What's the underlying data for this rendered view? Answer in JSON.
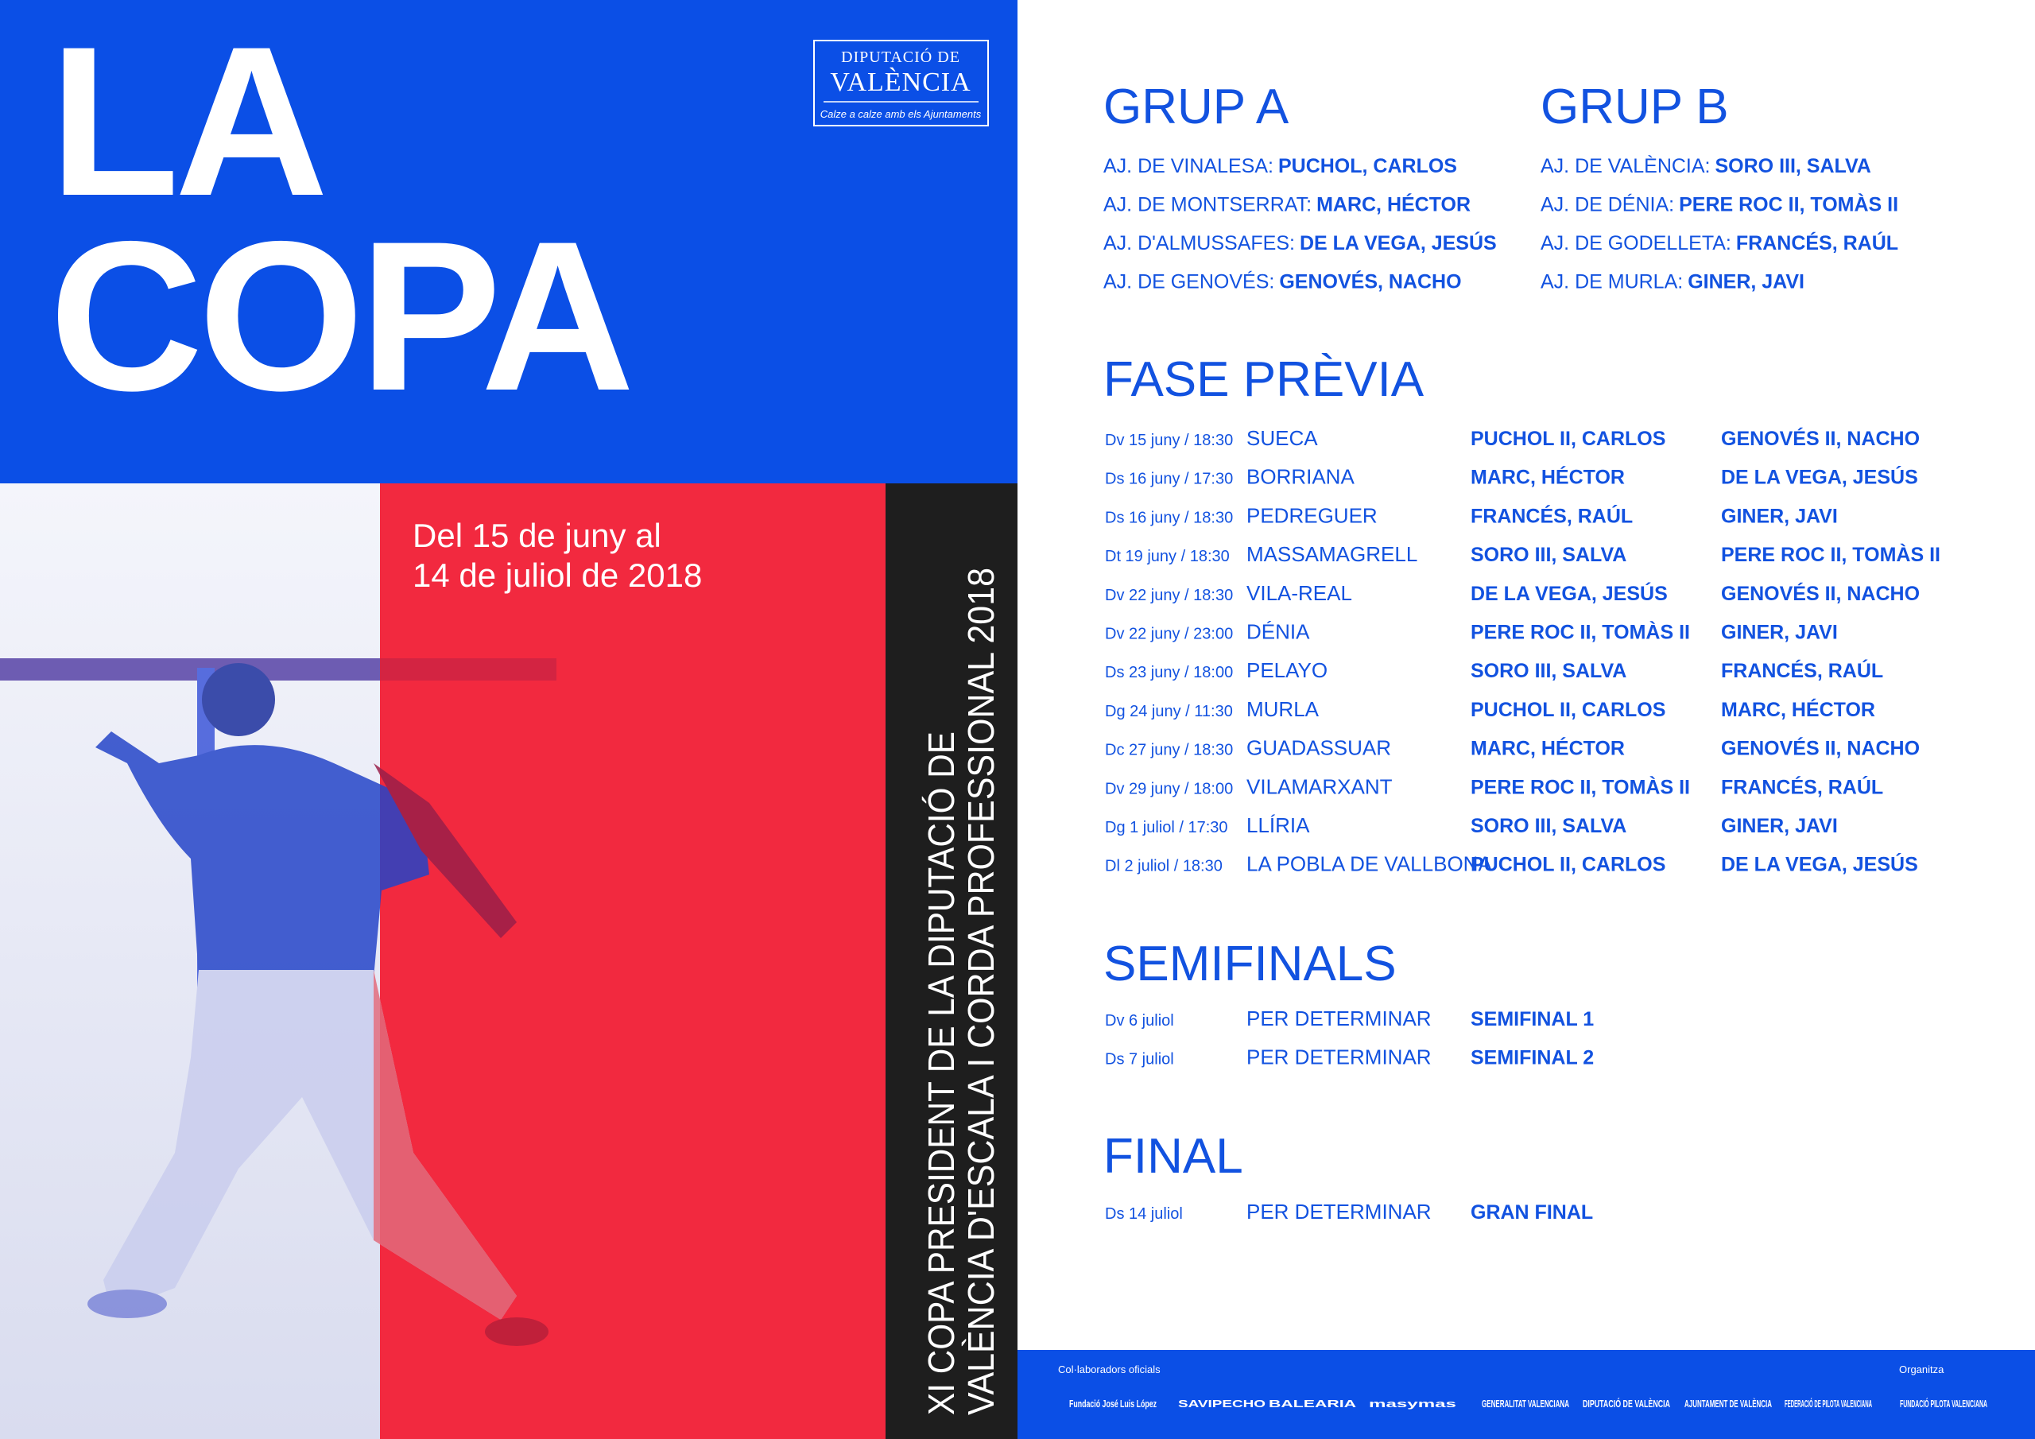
{
  "title": [
    "LA",
    "COPA"
  ],
  "logo": {
    "line1": "DIPUTACIÓ DE",
    "line2": "VALÈNCIA",
    "tagline": "Calze a calze amb els Ajuntaments"
  },
  "dates": [
    "Del 15 de juny al",
    "14 de juliol de 2018"
  ],
  "subtitle": [
    "XI COPA PRESIDENT DE LA DIPUTACIÓ DE",
    "VALÈNCIA D'ESCALA I CORDA PROFESSIONAL 2018"
  ],
  "groups": [
    {
      "name": "GRUP A",
      "teams": [
        {
          "town": "AJ. DE VINALESA:",
          "players": "PUCHOL, CARLOS"
        },
        {
          "town": "AJ. DE MONTSERRAT:",
          "players": "MARC, HÉCTOR"
        },
        {
          "town": "AJ. D'ALMUSSAFES:",
          "players": "DE LA VEGA, JESÚS"
        },
        {
          "town": "AJ. DE GENOVÉS:",
          "players": "GENOVÉS, NACHO"
        }
      ]
    },
    {
      "name": "GRUP B",
      "teams": [
        {
          "town": "AJ. DE VALÈNCIA:",
          "players": "SORO III, SALVA"
        },
        {
          "town": "AJ. DE DÉNIA:",
          "players": "PERE ROC II, TOMÀS II"
        },
        {
          "town": "AJ. DE GODELLETA:",
          "players": "FRANCÉS, RAÚL"
        },
        {
          "town": "AJ. DE MURLA:",
          "players": "GINER, JAVI"
        }
      ]
    }
  ],
  "sections": [
    {
      "heading": "FASE PRÈVIA",
      "matches": [
        {
          "date": "Dv 15 juny / 18:30",
          "venue": "SUECA",
          "team1": "PUCHOL II, CARLOS",
          "team2": "GENOVÉS II, NACHO"
        },
        {
          "date": "Ds 16 juny / 17:30",
          "venue": "BORRIANA",
          "team1": "MARC, HÉCTOR",
          "team2": "DE LA VEGA, JESÚS"
        },
        {
          "date": "Ds 16 juny / 18:30",
          "venue": "PEDREGUER",
          "team1": "FRANCÉS, RAÚL",
          "team2": "GINER, JAVI"
        },
        {
          "date": "Dt 19 juny / 18:30",
          "venue": "MASSAMAGRELL",
          "team1": "SORO III, SALVA",
          "team2": "PERE ROC II, TOMÀS II"
        },
        {
          "date": "Dv 22 juny / 18:30",
          "venue": "VILA-REAL",
          "team1": "DE LA VEGA, JESÚS",
          "team2": "GENOVÉS II, NACHO"
        },
        {
          "date": "Dv 22 juny / 23:00",
          "venue": "DÉNIA",
          "team1": "PERE ROC II, TOMÀS II",
          "team2": "GINER, JAVI"
        },
        {
          "date": "Ds 23 juny / 18:00",
          "venue": "PELAYO",
          "team1": "SORO III, SALVA",
          "team2": "FRANCÉS, RAÚL"
        },
        {
          "date": "Dg 24 juny / 11:30",
          "venue": "MURLA",
          "team1": "PUCHOL II, CARLOS",
          "team2": "MARC, HÉCTOR"
        },
        {
          "date": "Dc 27 juny / 18:30",
          "venue": "GUADASSUAR",
          "team1": "MARC, HÉCTOR",
          "team2": "GENOVÉS II, NACHO"
        },
        {
          "date": "Dv 29 juny / 18:00",
          "venue": "VILAMARXANT",
          "team1": "PERE ROC II, TOMÀS II",
          "team2": "FRANCÉS, RAÚL"
        },
        {
          "date": "Dg 1 juliol / 17:30",
          "venue": "LLÍRIA",
          "team1": "SORO III, SALVA",
          "team2": "GINER, JAVI"
        },
        {
          "date": "Dl 2 juliol / 18:30",
          "venue": "LA POBLA DE VALLBONA",
          "team1": "PUCHOL II, CARLOS",
          "team2": "DE LA VEGA, JESÚS"
        }
      ]
    },
    {
      "heading": "SEMIFINALS",
      "matches": [
        {
          "date": "Dv 6 juliol",
          "venue": "PER DETERMINAR",
          "team1": "SEMIFINAL 1"
        },
        {
          "date": "Ds 7 juliol",
          "venue": "PER DETERMINAR",
          "team1": "SEMIFINAL 2"
        }
      ]
    },
    {
      "heading": "FINAL",
      "matches": [
        {
          "date": "Ds 14 juliol",
          "venue": "PER DETERMINAR",
          "team1": "GRAN FINAL"
        }
      ]
    }
  ],
  "footer": {
    "collaborators_label": "Col·laboradors oficials",
    "collaborators": [
      "Fundació José Luis López",
      "SAVIPECHO",
      "BALEARIA",
      "masymas",
      "GENERALITAT VALENCIANA",
      "DIPUTACIÓ DE VALÈNCIA",
      "AJUNTAMENT DE VALÈNCIA",
      "FEDERACIÓ DE PILOTA VALENCIANA"
    ],
    "organizer_label": "Organitza",
    "organizer": "FUNDACIÓ PILOTA VALENCIANA"
  }
}
